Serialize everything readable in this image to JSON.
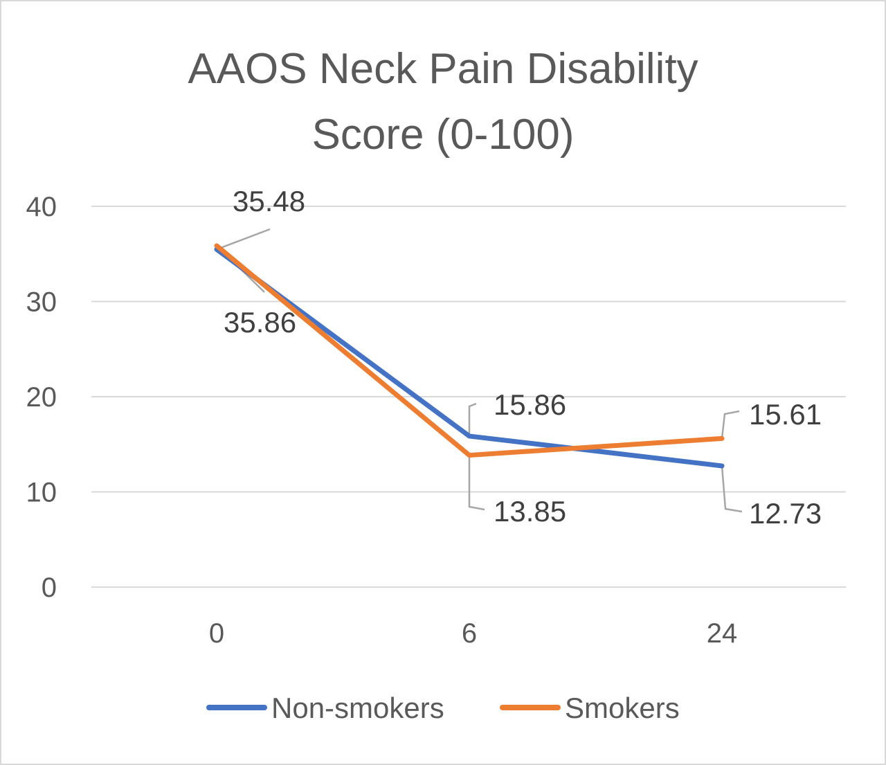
{
  "chart_data": {
    "type": "line",
    "title_lines": [
      "AAOS Neck Pain Disability",
      "Score (0-100)"
    ],
    "categories": [
      "0",
      "6",
      "24"
    ],
    "series": [
      {
        "name": "Non-smokers",
        "values": [
          35.48,
          15.86,
          12.73
        ],
        "labels": [
          "35.48",
          "15.86",
          "12.73"
        ],
        "color": "#4472C4"
      },
      {
        "name": "Smokers",
        "values": [
          35.86,
          13.85,
          15.61
        ],
        "labels": [
          "35.86",
          "13.85",
          "15.61"
        ],
        "color": "#ED7D31"
      }
    ],
    "ylim": [
      0,
      40
    ],
    "yticks": [
      "0",
      "10",
      "20",
      "30",
      "40"
    ],
    "grid": true,
    "gridline_color": "#d9d9d9",
    "leader_color": "#a6a6a6",
    "legend_position": "bottom"
  }
}
